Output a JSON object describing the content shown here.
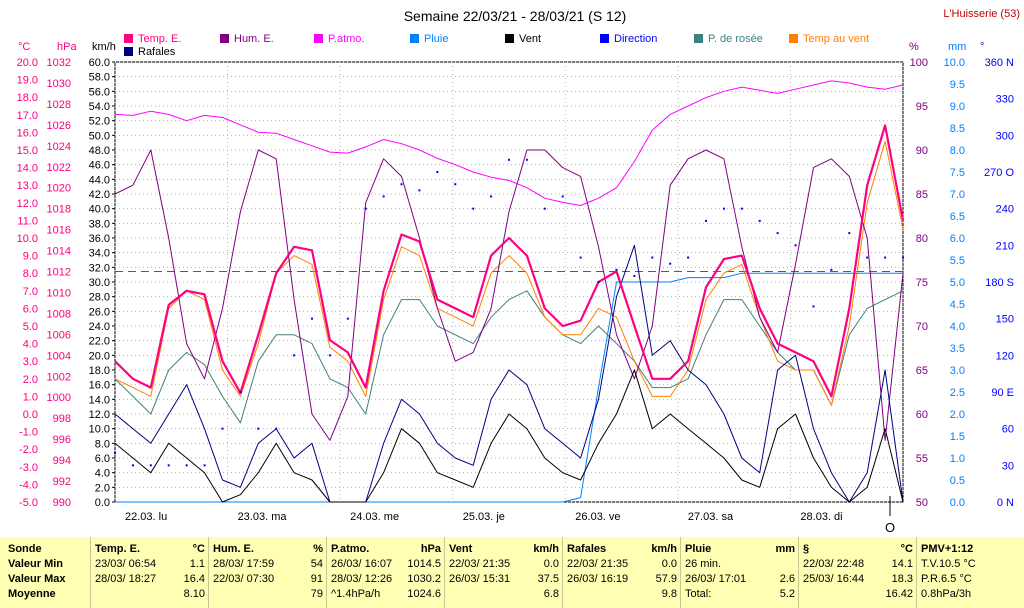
{
  "header": {
    "title": "Semaine 22/03/21 - 28/03/21 (S 12)",
    "site": "L'Huisserie (53)"
  },
  "chart_data": {
    "type": "line",
    "title": "Semaine 22/03/21 - 28/03/21 (S 12)",
    "x_labels": [
      "22.03.  lu",
      "23.03.  ma",
      "24.03.  me",
      "25.03.  je",
      "26.03.  ve",
      "27.03.  sa",
      "28.03.  di"
    ],
    "axes": {
      "temp": {
        "unit": "°C",
        "ylim": [
          -5,
          20
        ],
        "ticks": [
          "20.0",
          "19.0",
          "18.0",
          "17.0",
          "16.0",
          "15.0",
          "14.0",
          "13.0",
          "12.0",
          "11.0",
          "10.0",
          "9.0",
          "8.0",
          "7.0",
          "6.0",
          "5.0",
          "4.0",
          "3.0",
          "2.0",
          "1.0",
          "0.0",
          "-1.0",
          "-2.0",
          "-3.0",
          "-4.0",
          "-5.0"
        ]
      },
      "press": {
        "unit": "hPa",
        "ylim": [
          990,
          1032
        ],
        "ticks": [
          "1032",
          "1030",
          "1028",
          "1026",
          "1024",
          "1022",
          "1020",
          "1018",
          "1016",
          "1014",
          "1012",
          "1010",
          "1008",
          "1006",
          "1004",
          "1002",
          "1000",
          "998",
          "996",
          "994",
          "992",
          "990"
        ]
      },
      "wind": {
        "unit": "km/h",
        "ylim": [
          0,
          60
        ],
        "ticks": [
          "60.0",
          "58.0",
          "56.0",
          "54.0",
          "52.0",
          "50.0",
          "48.0",
          "46.0",
          "44.0",
          "42.0",
          "40.0",
          "38.0",
          "36.0",
          "34.0",
          "32.0",
          "30.0",
          "28.0",
          "26.0",
          "24.0",
          "22.0",
          "20.0",
          "18.0",
          "16.0",
          "14.0",
          "12.0",
          "10.0",
          "8.0",
          "6.0",
          "4.0",
          "2.0",
          "0.0"
        ]
      },
      "hum": {
        "unit": "%",
        "ylim": [
          50,
          100
        ],
        "ticks": [
          "100",
          "95",
          "90",
          "85",
          "80",
          "75",
          "70",
          "65",
          "60",
          "55",
          "50"
        ]
      },
      "rain": {
        "unit": "mm",
        "ylim": [
          0,
          10
        ],
        "ticks": [
          "10.0",
          "9.5",
          "9.0",
          "8.5",
          "8.0",
          "7.5",
          "7.0",
          "6.5",
          "6.0",
          "5.5",
          "5.0",
          "4.5",
          "4.0",
          "3.5",
          "3.0",
          "2.5",
          "2.0",
          "1.5",
          "1.0",
          "0.5",
          "0.0"
        ]
      },
      "dir": {
        "unit": "°",
        "ylim": [
          0,
          360
        ],
        "ticks": [
          "360 N",
          "330",
          "300",
          "270 O",
          "240",
          "210",
          "180 S",
          "150",
          "120",
          "90 E",
          "60",
          "30",
          "0 N"
        ]
      }
    },
    "series": [
      {
        "name": "Temp. E.",
        "color": "#ff0080",
        "axis": "temp",
        "values": [
          3.0,
          2.0,
          1.5,
          6.2,
          7.0,
          6.8,
          3.0,
          1.2,
          4.5,
          8.0,
          9.5,
          9.3,
          4.2,
          3.5,
          1.5,
          7.0,
          10.2,
          9.8,
          6.5,
          6.0,
          5.5,
          9.0,
          10.0,
          9.0,
          6.0,
          5.0,
          5.3,
          7.5,
          8.1,
          5.0,
          2.0,
          2.0,
          3.0,
          7.2,
          8.8,
          9.0,
          6.0,
          4.0,
          3.5,
          3.0,
          1.0,
          6.0,
          13.0,
          16.4,
          11.0
        ]
      },
      {
        "name": "Hum. E.",
        "color": "#800080",
        "axis": "hum",
        "values": [
          85,
          86,
          90,
          80,
          68,
          64,
          72,
          83,
          90,
          89,
          73,
          60,
          57,
          62,
          84,
          89,
          87,
          80,
          72,
          66,
          67,
          72,
          83,
          90,
          90,
          88,
          87,
          79,
          69,
          64,
          70,
          86,
          89,
          90,
          89,
          79,
          71,
          67,
          77,
          88,
          89,
          87,
          80,
          57,
          76
        ]
      },
      {
        "name": "P.atmo.",
        "color": "#ff00ff",
        "axis": "press",
        "values": [
          1027.0,
          1026.9,
          1027.3,
          1027.0,
          1026.4,
          1026.9,
          1026.7,
          1026.0,
          1025.3,
          1025.2,
          1024.6,
          1024.0,
          1023.4,
          1023.3,
          1023.9,
          1024.6,
          1024.2,
          1023.6,
          1022.8,
          1022.2,
          1021.5,
          1021.0,
          1020.7,
          1020.0,
          1019.0,
          1018.6,
          1018.3,
          1019.0,
          1020.0,
          1022.5,
          1025.5,
          1027.0,
          1027.8,
          1028.6,
          1029.2,
          1029.6,
          1029.3,
          1029.0,
          1029.4,
          1029.8,
          1030.2,
          1030.0,
          1029.6,
          1029.4,
          1029.8
        ]
      },
      {
        "name": "Pluie",
        "color": "#0080ff",
        "axis": "rain",
        "values": [
          0,
          0,
          0,
          0,
          0,
          0,
          0,
          0,
          0,
          0,
          0,
          0,
          0,
          0,
          0,
          0,
          0,
          0,
          0,
          0,
          0,
          0,
          0,
          0,
          0,
          0,
          0.1,
          2.6,
          5.0,
          5.0,
          5.0,
          5.0,
          5.1,
          5.1,
          5.1,
          5.2,
          5.2,
          5.2,
          5.2,
          5.2,
          5.2,
          5.2,
          5.2,
          5.2,
          5.2
        ]
      },
      {
        "name": "Vent",
        "color": "#000000",
        "axis": "wind",
        "values": [
          8,
          6,
          4,
          8,
          6,
          4,
          0,
          1,
          4,
          8,
          4,
          3,
          0,
          0,
          0,
          4,
          10,
          8,
          4,
          3,
          2,
          8,
          12,
          10,
          6,
          4,
          3,
          8,
          12,
          18,
          10,
          12,
          10,
          8,
          6,
          3,
          2,
          10,
          12,
          6,
          2,
          0,
          2,
          10,
          0
        ]
      },
      {
        "name": "Direction",
        "color": "#0000ff",
        "axis": "dir",
        "values": [
          40,
          30,
          30,
          30,
          30,
          30,
          60,
          90,
          60,
          60,
          120,
          150,
          120,
          150,
          240,
          250,
          260,
          255,
          270,
          260,
          240,
          250,
          280,
          280,
          240,
          250,
          200,
          180,
          190,
          185,
          200,
          195,
          200,
          230,
          240,
          240,
          230,
          220,
          210,
          160,
          190,
          220,
          200,
          200,
          200
        ]
      },
      {
        "name": "P. de rosée",
        "color": "#408080",
        "axis": "temp",
        "values": [
          2.0,
          1.0,
          0.0,
          2.5,
          3.5,
          2.8,
          1.0,
          -0.5,
          3.0,
          4.5,
          4.5,
          4.0,
          2.0,
          1.5,
          0.0,
          4.5,
          6.5,
          6.5,
          5.0,
          4.5,
          4.0,
          5.5,
          6.5,
          7.0,
          5.5,
          4.5,
          4.0,
          5.0,
          4.0,
          3.0,
          1.5,
          1.5,
          2.0,
          4.5,
          6.5,
          6.5,
          5.0,
          3.5,
          2.5,
          2.5,
          0.5,
          4.5,
          6.0,
          6.5,
          7.0
        ]
      },
      {
        "name": "Temp au vent",
        "color": "#ff8000",
        "axis": "temp",
        "values": [
          2.0,
          1.5,
          1.0,
          6.0,
          7.0,
          6.5,
          2.5,
          1.0,
          4.0,
          8.0,
          9.0,
          8.5,
          3.8,
          3.0,
          1.0,
          6.5,
          9.5,
          9.0,
          6.0,
          5.5,
          5.0,
          8.0,
          9.0,
          8.0,
          5.5,
          4.5,
          4.5,
          6.0,
          5.5,
          3.0,
          1.0,
          1.0,
          2.5,
          6.5,
          8.0,
          8.5,
          5.5,
          3.0,
          2.5,
          2.5,
          0.5,
          5.0,
          12.0,
          15.5,
          10.5
        ]
      },
      {
        "name": "Rafales",
        "color": "#000080",
        "axis": "wind",
        "values": [
          12,
          10,
          8,
          12,
          16,
          10,
          3,
          2,
          8,
          10,
          6,
          8,
          0,
          0,
          0,
          8,
          14,
          12,
          8,
          6,
          5,
          14,
          18,
          16,
          10,
          8,
          6,
          14,
          28,
          35,
          20,
          22,
          18,
          16,
          12,
          6,
          4,
          18,
          20,
          10,
          4,
          0,
          4,
          18,
          0
        ]
      }
    ],
    "reference_line": {
      "color": "#ff0080",
      "temp_value": 8.1
    },
    "grid": true,
    "legend": "top",
    "marker_symbol": "O"
  },
  "summary": {
    "rows": [
      "Sonde",
      "Valeur Min",
      "Valeur Max",
      "Moyenne"
    ],
    "columns": [
      {
        "title": "Temp. E.",
        "unit": "°C",
        "cells": [
          [
            "23/03/  06:54",
            "1.1"
          ],
          [
            "28/03/  18:27",
            "16.4"
          ],
          [
            "",
            "8.10"
          ]
        ]
      },
      {
        "title": "Hum. E.",
        "unit": "%",
        "cells": [
          [
            "28/03/  17:59",
            "54"
          ],
          [
            "22/03/  07:30",
            "91"
          ],
          [
            "",
            "79"
          ]
        ]
      },
      {
        "title": "P.atmo.",
        "unit": "hPa",
        "cells": [
          [
            "26/03/  16:07",
            "1014.5"
          ],
          [
            "28/03/  12:26",
            "1030.2"
          ],
          [
            "^1.4hPa/h",
            "1024.6"
          ]
        ]
      },
      {
        "title": "Vent",
        "unit": "km/h",
        "cells": [
          [
            "22/03/  21:35",
            "0.0"
          ],
          [
            "26/03/  15:31",
            "37.5"
          ],
          [
            "",
            "6.8"
          ]
        ]
      },
      {
        "title": "Rafales",
        "unit": "km/h",
        "cells": [
          [
            "22/03/  21:35",
            "0.0"
          ],
          [
            "26/03/  16:19",
            "57.9"
          ],
          [
            "",
            "9.8"
          ]
        ]
      },
      {
        "title": "Pluie",
        "unit": "mm",
        "cells": [
          [
            "26 min.",
            ""
          ],
          [
            "26/03/  17:01",
            "2.6"
          ],
          [
            "Total:",
            "5.2"
          ]
        ]
      },
      {
        "title": "§",
        "unit": "°C",
        "cells": [
          [
            "22/03/  22:48",
            "14.1"
          ],
          [
            "25/03/  16:44",
            "18.3"
          ],
          [
            "",
            "16.42"
          ]
        ]
      },
      {
        "title": "PMV+1:12",
        "unit": "",
        "cells": [
          [
            "T.V.10.5 °C",
            ""
          ],
          [
            "P.R.6.5 °C",
            ""
          ],
          [
            "0.8hPa/3h",
            ""
          ]
        ]
      }
    ]
  }
}
